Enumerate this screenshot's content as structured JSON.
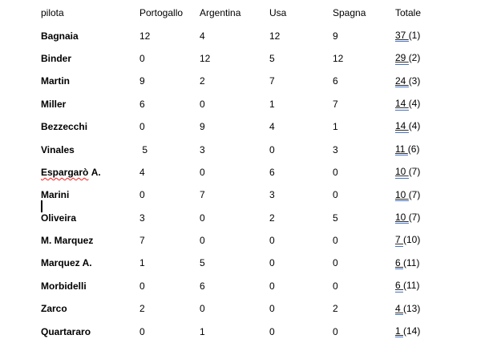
{
  "table": {
    "columns": [
      "pilota",
      "Portogallo",
      "Argentina",
      "Usa",
      "Spagna",
      "Totale"
    ],
    "rows": [
      {
        "pilota": "Bagnaia",
        "values": [
          "12",
          "4",
          "12",
          "9"
        ],
        "total": "37",
        "rank": "(1)"
      },
      {
        "pilota": "Binder",
        "values": [
          "0",
          "12",
          "5",
          "12"
        ],
        "total": "29",
        "rank": "(2)"
      },
      {
        "pilota": "Martin",
        "values": [
          "9",
          "2",
          "7",
          "6"
        ],
        "total": "24",
        "rank": "(3)"
      },
      {
        "pilota": "Miller",
        "values": [
          "6",
          "0",
          "1",
          "7"
        ],
        "total": "14",
        "rank": "(4)"
      },
      {
        "pilota": "Bezzecchi",
        "values": [
          "0",
          "9",
          "4",
          "1"
        ],
        "total": "14",
        "rank": "(4)"
      },
      {
        "pilota": "Vinales",
        "values": [
          " 5",
          "3",
          "0",
          "3"
        ],
        "total": "11",
        "rank": "(6)"
      },
      {
        "pilota": "Espargarò A.",
        "spell_error_part": "Espargarò",
        "pilota_suffix": " A.",
        "values": [
          "4",
          "0",
          "6",
          "0"
        ],
        "total": "10",
        "rank": "(7)"
      },
      {
        "pilota": "Marini",
        "values": [
          "0",
          "7",
          "3",
          "0"
        ],
        "total": "10",
        "rank": "(7)"
      },
      {
        "pilota": "Oliveira",
        "values": [
          "3",
          "0",
          "2",
          "5"
        ],
        "total": "10",
        "rank": "(7)"
      },
      {
        "pilota": "M. Marquez",
        "values": [
          "7",
          "0",
          "0",
          "0"
        ],
        "total": "7",
        "rank": "(10)"
      },
      {
        "pilota": "Marquez A.",
        "values": [
          "1",
          "5",
          "0",
          "0"
        ],
        "total": "6",
        "rank": "(11)"
      },
      {
        "pilota": "Morbidelli",
        "values": [
          "0",
          "6",
          "0",
          "0"
        ],
        "total": "6",
        "rank": "(11)"
      },
      {
        "pilota": "Zarco",
        "values": [
          "2",
          "0",
          "0",
          "2"
        ],
        "total": "4",
        "rank": "(13)"
      },
      {
        "pilota": "Quartararo",
        "values": [
          "0",
          "1",
          "0",
          "0"
        ],
        "total": "1",
        "rank": "(14)"
      }
    ]
  },
  "editor": {
    "caret_visible": true,
    "spellcheck_underline_color": "#ff1a1a",
    "grammar_underline_color": "#4472c4",
    "text_color": "#000000",
    "background_color": "#ffffff"
  }
}
